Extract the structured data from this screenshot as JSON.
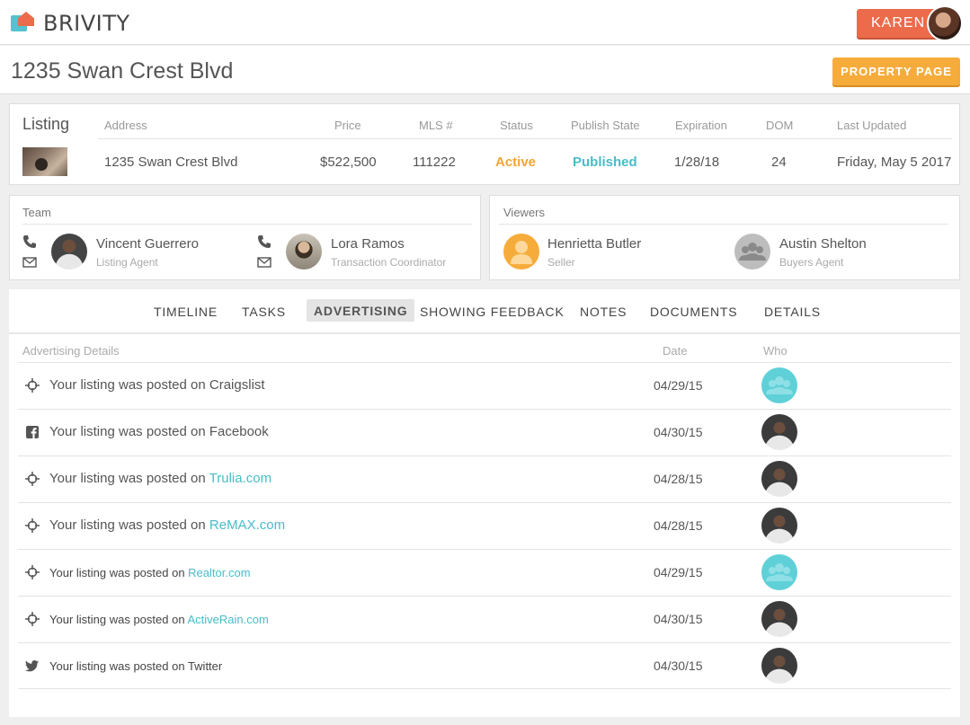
{
  "app": {
    "brand": "BRIVITY",
    "user_label": "KAREN"
  },
  "page": {
    "title": "1235 Swan Crest Blvd",
    "property_button": "PROPERTY PAGE"
  },
  "listing": {
    "title": "Listing",
    "headers": {
      "address": "Address",
      "price": "Price",
      "mls": "MLS #",
      "status": "Status",
      "publish_state": "Publish State",
      "expiration": "Expiration",
      "dom": "DOM",
      "last_updated": "Last Updated"
    },
    "row": {
      "address": "1235 Swan Crest Blvd",
      "price": "$522,500",
      "mls": "111222",
      "status": "Active",
      "publish_state": "Published",
      "expiration": "1/28/18",
      "dom": "24",
      "last_updated": "Friday, May 5 2017"
    }
  },
  "team": {
    "title": "Team",
    "members": [
      {
        "name": "Vincent Guerrero",
        "role": "Listing Agent"
      },
      {
        "name": "Lora Ramos",
        "role": "Transaction Coordinator"
      }
    ]
  },
  "viewers": {
    "title": "Viewers",
    "members": [
      {
        "name": "Henrietta Butler",
        "role": "Seller"
      },
      {
        "name": "Austin Shelton",
        "role": "Buyers Agent"
      }
    ]
  },
  "tabs": [
    "TIMELINE",
    "TASKS",
    "ADVERTISING",
    "SHOWING FEEDBACK",
    "NOTES",
    "DOCUMENTS",
    "DETAILS"
  ],
  "active_tab": "ADVERTISING",
  "advertising": {
    "headers": {
      "details": "Advertising Details",
      "date": "Date",
      "who": "Who"
    },
    "rows": [
      {
        "prefix": "Your listing was posted on ",
        "target": "Craigslist",
        "linked": false,
        "date": "04/29/15",
        "icon": "crosshair-icon",
        "who": "team"
      },
      {
        "prefix": "Your listing was posted on ",
        "target": "Facebook",
        "linked": false,
        "date": "04/30/15",
        "icon": "facebook-icon",
        "who": "person"
      },
      {
        "prefix": "Your listing was posted on ",
        "target": "Trulia.com",
        "linked": true,
        "date": "04/28/15",
        "icon": "crosshair-icon",
        "who": "person"
      },
      {
        "prefix": "Your listing was posted on ",
        "target": "ReMAX.com",
        "linked": true,
        "date": "04/28/15",
        "icon": "crosshair-icon",
        "who": "person"
      },
      {
        "prefix": "Your listing was posted on ",
        "target": "Realtor.com",
        "linked": true,
        "date": "04/29/15",
        "icon": "crosshair-icon",
        "who": "team"
      },
      {
        "prefix": "Your listing was posted on ",
        "target": "ActiveRain.com",
        "linked": true,
        "date": "04/30/15",
        "icon": "crosshair-icon",
        "who": "person"
      },
      {
        "prefix": "Your listing was posted on ",
        "target": "Twitter",
        "linked": false,
        "date": "04/30/15",
        "icon": "twitter-icon",
        "who": "person"
      }
    ]
  },
  "colors": {
    "brand_orange": "#ec6b4b",
    "accent_yellow": "#f6ac3b",
    "accent_teal": "#47bdc9",
    "active_status": "#f0a633"
  }
}
